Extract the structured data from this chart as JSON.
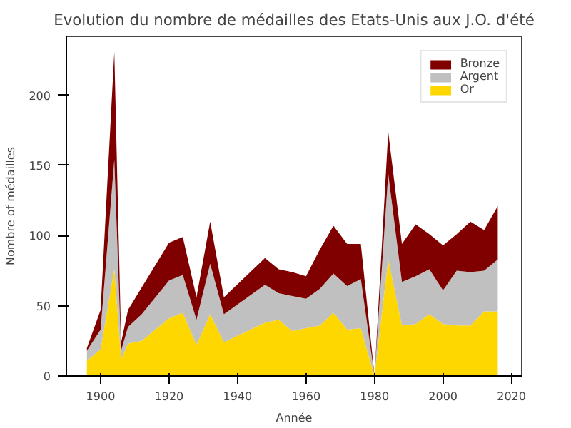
{
  "chart_data": {
    "type": "area",
    "stacked": true,
    "title": "Evolution du nombre de médailles des Etats-Unis aux J.O. d'été",
    "xlabel": "Année",
    "ylabel": "Nombre of médailles",
    "x": [
      1896,
      1900,
      1904,
      1906,
      1908,
      1912,
      1920,
      1924,
      1928,
      1932,
      1936,
      1948,
      1952,
      1956,
      1960,
      1964,
      1968,
      1972,
      1976,
      1980,
      1984,
      1988,
      1992,
      1996,
      2000,
      2004,
      2008,
      2012,
      2016
    ],
    "series": [
      {
        "name": "Or",
        "color": "#ffd700",
        "values": [
          11,
          19,
          76,
          12,
          23,
          25,
          41,
          45,
          22,
          44,
          24,
          38,
          40,
          32,
          34,
          36,
          45,
          33,
          34,
          0,
          83,
          36,
          37,
          44,
          37,
          36,
          36,
          46,
          46
        ]
      },
      {
        "name": "Argent",
        "color": "#c0c0c0",
        "values": [
          7,
          14,
          78,
          6,
          12,
          19,
          27,
          27,
          18,
          36,
          20,
          27,
          19,
          25,
          21,
          26,
          28,
          31,
          35,
          0,
          61,
          31,
          34,
          32,
          24,
          39,
          38,
          29,
          37
        ]
      },
      {
        "name": "Bronze",
        "color": "#800000",
        "values": [
          2,
          14,
          77,
          6,
          12,
          19,
          27,
          27,
          16,
          30,
          12,
          19,
          17,
          17,
          16,
          28,
          34,
          30,
          25,
          0,
          30,
          27,
          37,
          25,
          32,
          26,
          36,
          29,
          38
        ]
      }
    ],
    "xlim": [
      1890,
      2023
    ],
    "ylim": [
      0,
      242
    ],
    "xticks": [
      1900,
      1920,
      1940,
      1960,
      1980,
      2000,
      2020
    ],
    "yticks": [
      0,
      50,
      100,
      150,
      200
    ],
    "legend": "top right",
    "grid": false
  }
}
